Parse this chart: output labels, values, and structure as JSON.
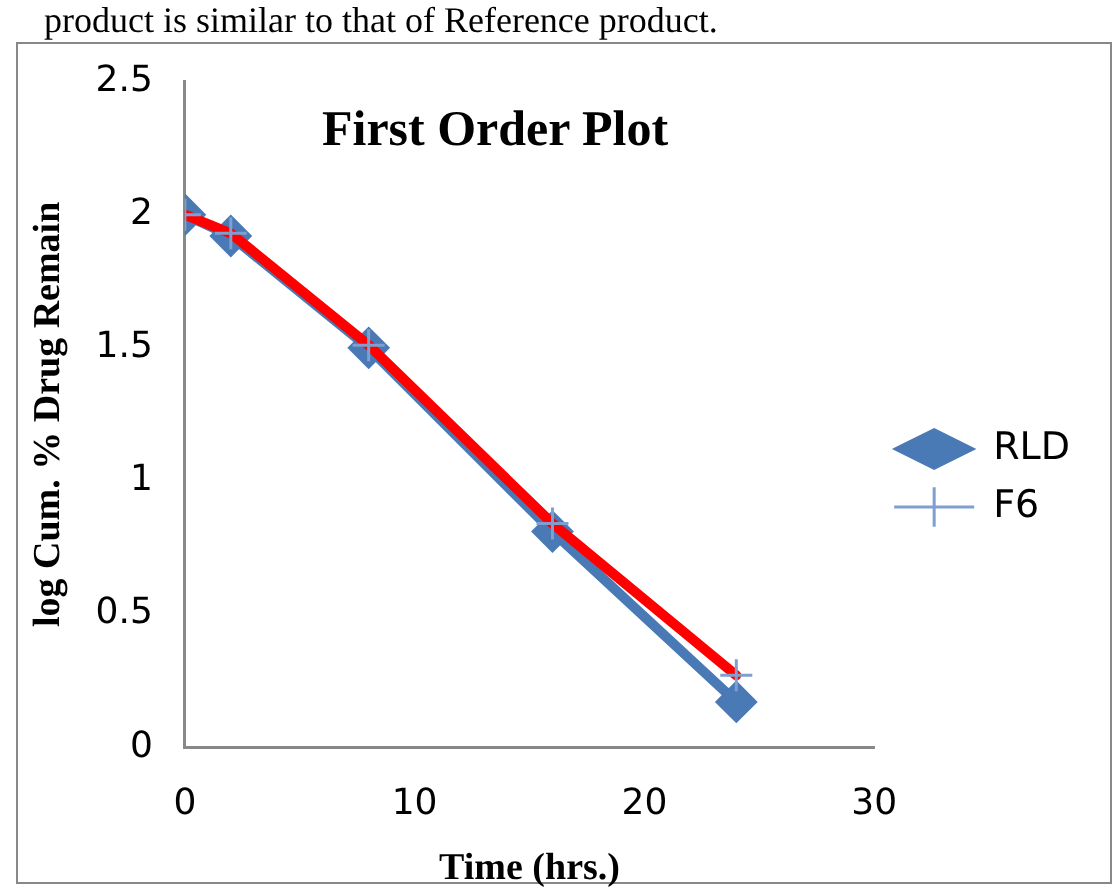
{
  "chart_data": {
    "type": "line",
    "title": "First Order Plot",
    "xlabel": "Time (hrs.)",
    "ylabel": "log Cum. % Drug Remain",
    "annotations": [
      "product is similar to that of Reference product."
    ],
    "x": [
      0,
      2,
      8,
      16,
      24
    ],
    "series": [
      {
        "name": "RLD",
        "color": "#4a7ab5",
        "marker": "diamond",
        "values": [
          2,
          1.92,
          1.5,
          0.81,
          0.17
        ]
      },
      {
        "name": "F6",
        "color": "#ff0000",
        "marker": "cross",
        "values": [
          2,
          1.93,
          1.51,
          0.84,
          0.27
        ]
      }
    ],
    "xlim": [
      0,
      30
    ],
    "xticks": [
      0,
      10,
      20,
      30
    ],
    "ylim": [
      0,
      2.5
    ],
    "yticks": [
      0,
      0.5,
      1,
      1.5,
      2,
      2.5
    ],
    "grid": false,
    "legend": "right"
  }
}
